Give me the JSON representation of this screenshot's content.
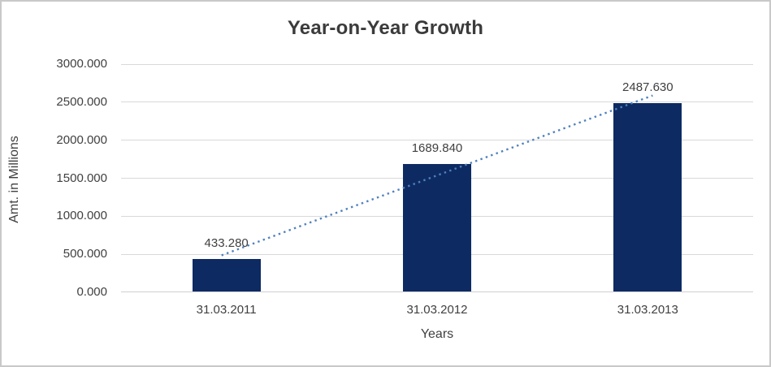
{
  "chart_data": {
    "type": "bar",
    "title": "Year-on-Year Growth",
    "xlabel": "Years",
    "ylabel": "Amt. in Millions",
    "categories": [
      "31.03.2011",
      "31.03.2012",
      "31.03.2013"
    ],
    "values": [
      433.28,
      1689.84,
      2487.63
    ],
    "data_labels": [
      "433.280",
      "1689.840",
      "2487.630"
    ],
    "ylim": [
      0,
      3000
    ],
    "ytick_step": 500,
    "ytick_labels": [
      "0.000",
      "500.000",
      "1000.000",
      "1500.000",
      "2000.000",
      "2500.000",
      "3000.000"
    ],
    "grid": true,
    "legend": "none",
    "trendline": {
      "type": "linear",
      "style": "dotted"
    },
    "colors": {
      "bar": "#0D2A63",
      "trendline": "#4F81BD",
      "gridline": "#D9D9D9",
      "axis_line": "#CFCFCF",
      "text": "#404040",
      "border": "#C9C9C9",
      "background": "#FFFFFF"
    }
  }
}
